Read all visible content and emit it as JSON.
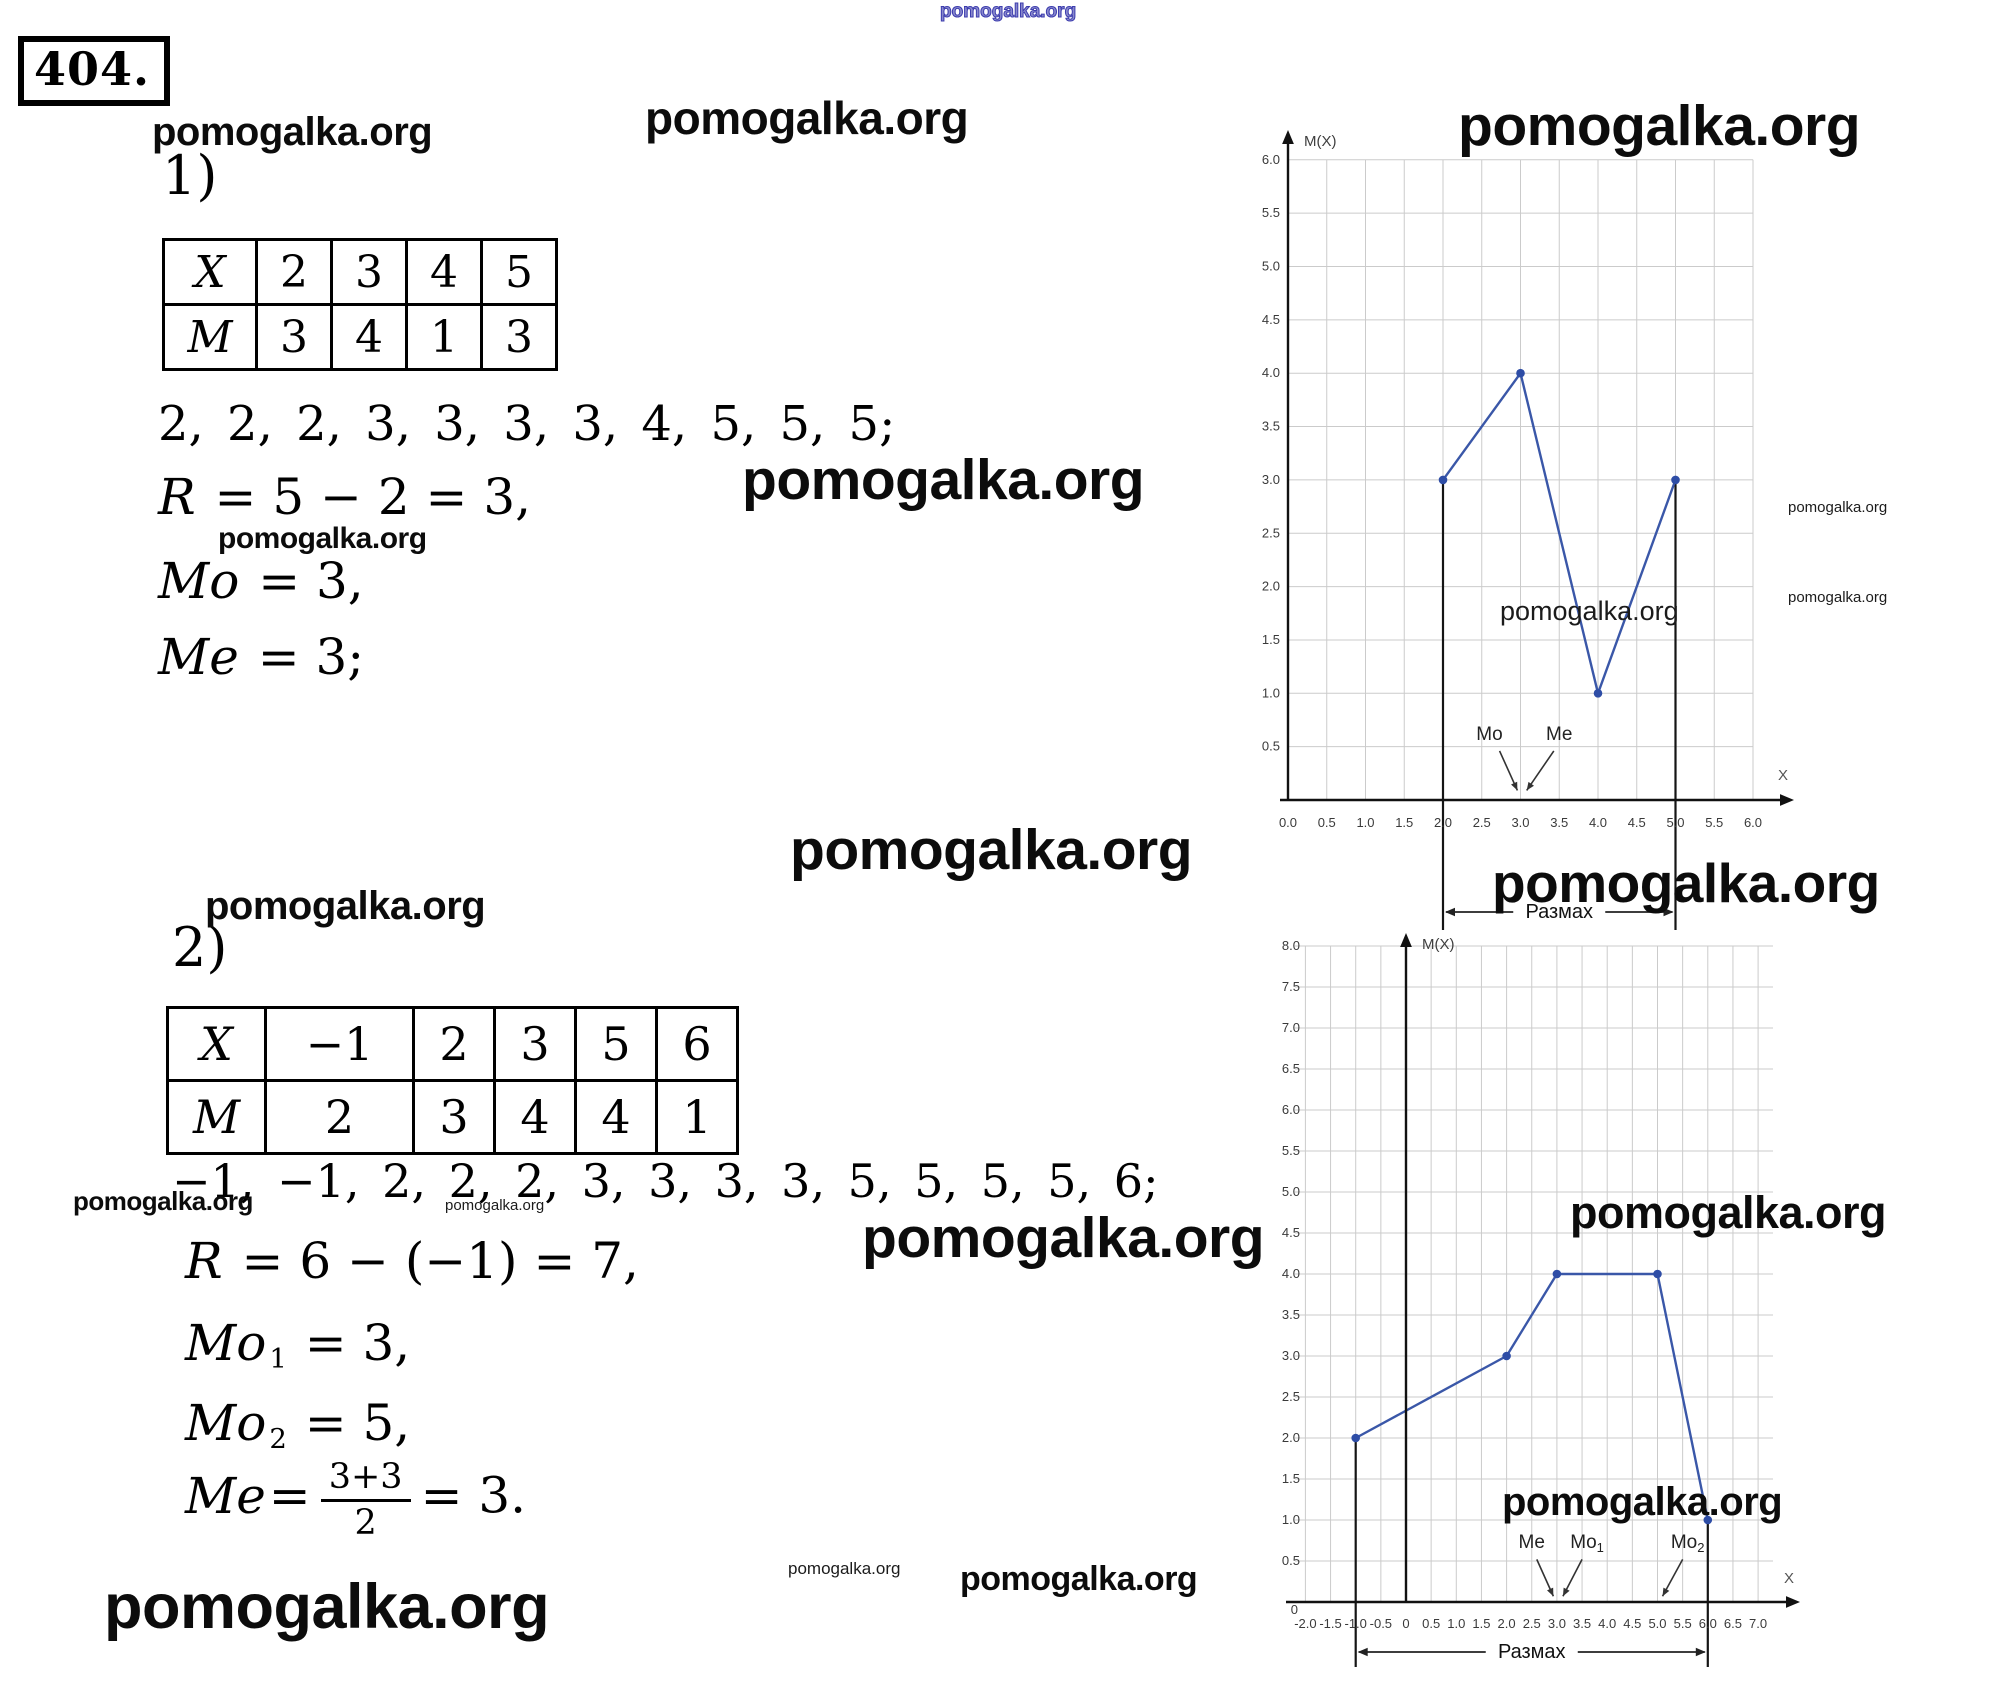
{
  "page": {
    "problem_number": "404.",
    "watermark": "pomogalka.org"
  },
  "part1": {
    "section_label": "1)",
    "table_rows": [
      [
        "X",
        "2",
        "3",
        "4",
        "5"
      ],
      [
        "M",
        "3",
        "4",
        "1",
        "3"
      ]
    ],
    "series": "2, 2, 2, 3, 3, 3, 3, 4, 5, 5, 5;",
    "range_formula": {
      "variable": "R",
      "rest": " = 5 − 2 = 3,"
    },
    "mode_formula": {
      "variable": "Mo",
      "rest": " = 3,"
    },
    "median_formula": {
      "variable": "Me",
      "rest": " = 3;"
    }
  },
  "part2": {
    "section_label": "2)",
    "table_rows": [
      [
        "X",
        "−1",
        "2",
        "3",
        "5",
        "6"
      ],
      [
        "M",
        "2",
        "3",
        "4",
        "4",
        "1"
      ]
    ],
    "series": "−1, −1, 2, 2, 2, 3, 3, 3, 3, 5, 5, 5, 5, 6;",
    "range_formula": {
      "variable": "R",
      "rest": " = 6 − (−1) = 7,"
    },
    "mode1_formula": {
      "variable": "Mo",
      "sub": "1",
      "rest": " = 3,"
    },
    "mode2_formula": {
      "variable": "Mo",
      "sub": "2",
      "rest": " = 5,"
    },
    "median_formula": {
      "variable": "Me",
      "eq": "=",
      "numerator": "3+3",
      "denominator": "2",
      "result": "= 3."
    }
  },
  "chart_data": [
    {
      "type": "line",
      "title": "M(X)",
      "xlabel": "X",
      "x": [
        2,
        3,
        4,
        5
      ],
      "y": [
        3,
        4,
        1,
        3
      ],
      "xlim": [
        0,
        6.3
      ],
      "ylim": [
        0,
        6.3
      ],
      "grid": true,
      "line_color": "#3a57a8",
      "point_color": "#2e4da6",
      "x_ticks": [
        "0.0",
        "0.5",
        "1.0",
        "1.5",
        "2.0",
        "2.5",
        "3.0",
        "3.5",
        "4.0",
        "4.5",
        "5.0",
        "5.5",
        "6.0"
      ],
      "y_ticks": [
        "0.5",
        "1.0",
        "1.5",
        "2.0",
        "2.5",
        "3.0",
        "3.5",
        "4.0",
        "4.5",
        "5.0",
        "5.5",
        "6.0"
      ],
      "guides": [
        {
          "x": 2,
          "top": 3
        },
        {
          "x": 5,
          "top": 3
        }
      ],
      "range_bracket": {
        "label": "Размах",
        "from": 2,
        "to": 5
      },
      "annotations": [
        {
          "label": "Mo",
          "sub": "",
          "text": [
            2.6,
            0.56
          ],
          "from": [
            2.73,
            0.46
          ],
          "to": [
            2.96,
            0.09
          ]
        },
        {
          "label": "Me",
          "sub": "",
          "text": [
            3.5,
            0.56
          ],
          "from": [
            3.43,
            0.46
          ],
          "to": [
            3.08,
            0.09
          ]
        }
      ]
    },
    {
      "type": "line",
      "title": "M(X)",
      "xlabel": "X",
      "x": [
        -1,
        2,
        3,
        5,
        6
      ],
      "y": [
        2,
        3,
        4,
        4,
        1
      ],
      "xlim": [
        -2.3,
        7.3
      ],
      "ylim": [
        0,
        8.3
      ],
      "grid": true,
      "line_color": "#3a57a8",
      "point_color": "#2e4da6",
      "x_ticks": [
        "-2.0",
        "-1.5",
        "-1.0",
        "-0.5",
        "0",
        "0.5",
        "1.0",
        "1.5",
        "2.0",
        "2.5",
        "3.0",
        "3.5",
        "4.0",
        "4.5",
        "5.0",
        "5.5",
        "6.0",
        "6.5",
        "7.0"
      ],
      "y_ticks": [
        "0",
        "0.5",
        "1.0",
        "1.5",
        "2.0",
        "2.5",
        "3.0",
        "3.5",
        "4.0",
        "4.5",
        "5.0",
        "5.5",
        "6.0",
        "6.5",
        "7.0",
        "7.5",
        "8.0"
      ],
      "guides": [
        {
          "x": -1,
          "top": 2
        },
        {
          "x": 6,
          "top": 1
        }
      ],
      "range_bracket": {
        "label": "Размах",
        "from": -1,
        "to": 6
      },
      "annotations": [
        {
          "label": "Me",
          "sub": "",
          "text": [
            2.5,
            0.66
          ],
          "from": [
            2.6,
            0.52
          ],
          "to": [
            2.93,
            0.07
          ]
        },
        {
          "label": "Mo",
          "sub": "1",
          "text": [
            3.6,
            0.66
          ],
          "from": [
            3.5,
            0.52
          ],
          "to": [
            3.12,
            0.07
          ]
        },
        {
          "label": "Mo",
          "sub": "2",
          "text": [
            5.6,
            0.66
          ],
          "from": [
            5.5,
            0.52
          ],
          "to": [
            5.1,
            0.07
          ]
        }
      ]
    }
  ]
}
